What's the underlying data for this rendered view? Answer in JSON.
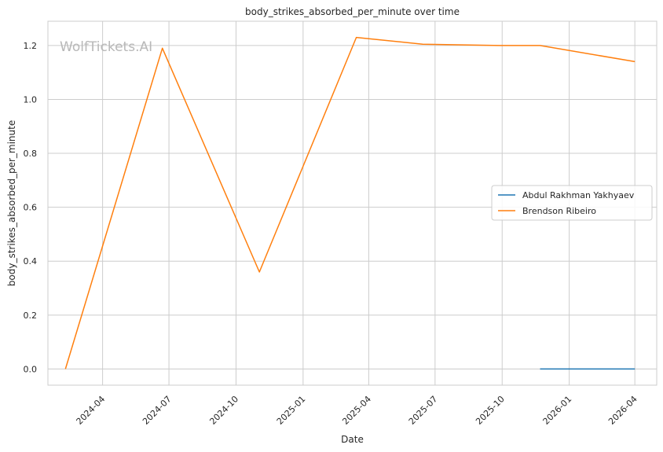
{
  "chart_data": {
    "type": "line",
    "title": "body_strikes_absorbed_per_minute over time",
    "xlabel": "Date",
    "ylabel": "body_strikes_absorbed_per_minute",
    "watermark": "WolfTickets.AI",
    "xlim": [
      "2024-01-17",
      "2026-05-01"
    ],
    "ylim": [
      -0.06,
      1.29
    ],
    "xticks": [
      "2024-04-01",
      "2024-07-01",
      "2024-10-01",
      "2025-01-01",
      "2025-04-01",
      "2025-07-01",
      "2025-10-01",
      "2026-01-01",
      "2026-04-01"
    ],
    "xtick_labels": [
      "2024-04",
      "2024-07",
      "2024-10",
      "2025-01",
      "2025-04",
      "2025-07",
      "2025-10",
      "2026-01",
      "2026-04"
    ],
    "yticks": [
      0.0,
      0.2,
      0.4,
      0.6,
      0.8,
      1.0,
      1.2
    ],
    "ytick_labels": [
      "0.0",
      "0.2",
      "0.4",
      "0.6",
      "0.8",
      "1.0",
      "1.2"
    ],
    "grid": true,
    "legend_position": "center-right",
    "series": [
      {
        "name": "Abdul Rakhman Yakhyaev",
        "color": "#1f77b4",
        "points": [
          {
            "x": "2025-11-22",
            "y": 0.0
          },
          {
            "x": "2026-04-01",
            "y": 0.0
          }
        ]
      },
      {
        "name": "Brendson Ribeiro",
        "color": "#ff7f0e",
        "points": [
          {
            "x": "2024-02-10",
            "y": 0.0
          },
          {
            "x": "2024-06-22",
            "y": 1.19
          },
          {
            "x": "2024-11-02",
            "y": 0.36
          },
          {
            "x": "2025-03-15",
            "y": 1.23
          },
          {
            "x": "2025-06-14",
            "y": 1.205
          },
          {
            "x": "2025-09-27",
            "y": 1.2
          },
          {
            "x": "2025-11-22",
            "y": 1.2
          },
          {
            "x": "2026-04-01",
            "y": 1.14
          }
        ]
      }
    ]
  }
}
